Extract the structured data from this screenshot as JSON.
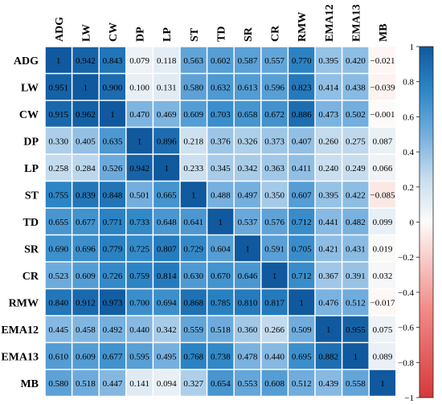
{
  "chart_data": {
    "type": "heatmap",
    "row_labels": [
      "ADG",
      "LW",
      "CW",
      "DP",
      "LP",
      "ST",
      "TD",
      "SR",
      "CR",
      "RMW",
      "EMA12",
      "EMA13",
      "MB"
    ],
    "col_labels": [
      "ADG",
      "LW",
      "CW",
      "DP",
      "LP",
      "ST",
      "TD",
      "SR",
      "CR",
      "RMW",
      "EMA12",
      "EMA13",
      "MB"
    ],
    "cell_labels": [
      [
        "1",
        "0.942",
        "0.843",
        "0.079",
        "0.118",
        "0.563",
        "0.602",
        "0.587",
        "0.557",
        "0.770",
        "0.395",
        "0.420",
        "−0.021"
      ],
      [
        "0.951",
        "1",
        "0.900",
        "0.100",
        "0.131",
        "0.580",
        "0.632",
        "0.613",
        "0.596",
        "0.823",
        "0.414",
        "0.438",
        "−0.039"
      ],
      [
        "0.915",
        "0.962",
        "1",
        "0.470",
        "0.469",
        "0.609",
        "0.703",
        "0.658",
        "0.672",
        "0.886",
        "0.473",
        "0.502",
        "−0.001"
      ],
      [
        "0.330",
        "0.405",
        "0.635",
        "1",
        "0.896",
        "0.218",
        "0.376",
        "0.326",
        "0.373",
        "0.407",
        "0.260",
        "0.275",
        "0.087"
      ],
      [
        "0.258",
        "0.284",
        "0.526",
        "0.942",
        "1",
        "0.233",
        "0.345",
        "0.342",
        "0.363",
        "0.411",
        "0.240",
        "0.249",
        "0.066"
      ],
      [
        "0.755",
        "0.839",
        "0.848",
        "0.501",
        "0.665",
        "1",
        "0.488",
        "0.497",
        "0.350",
        "0.607",
        "0.395",
        "0.422",
        "−0.085"
      ],
      [
        "0.655",
        "0.677",
        "0.771",
        "0.733",
        "0.648",
        "0.641",
        "1",
        "0.537",
        "0.576",
        "0.712",
        "0.441",
        "0.482",
        "0.099"
      ],
      [
        "0.690",
        "0.696",
        "0.779",
        "0.725",
        "0.807",
        "0.729",
        "0.604",
        "1",
        "0.591",
        "0.705",
        "0.421",
        "0.431",
        "0.019"
      ],
      [
        "0.523",
        "0.609",
        "0.726",
        "0.759",
        "0.814",
        "0.630",
        "0.670",
        "0.646",
        "1",
        "0.712",
        "0.367",
        "0.391",
        "0.032"
      ],
      [
        "0.840",
        "0.912",
        "0.973",
        "0.700",
        "0.694",
        "0.868",
        "0.785",
        "0.810",
        "0.817",
        "1",
        "0.476",
        "0.512",
        "−0.017"
      ],
      [
        "0.445",
        "0.458",
        "0.492",
        "0.440",
        "0.342",
        "0.559",
        "0.518",
        "0.360",
        "0.266",
        "0.509",
        "1",
        "0.955",
        "0.075"
      ],
      [
        "0.610",
        "0.609",
        "0.677",
        "0.595",
        "0.495",
        "0.768",
        "0.738",
        "0.478",
        "0.440",
        "0.695",
        "0.882",
        "1",
        "0.089"
      ],
      [
        "0.580",
        "0.518",
        "0.447",
        "0.141",
        "0.094",
        "0.327",
        "0.654",
        "0.553",
        "0.608",
        "0.512",
        "0.439",
        "0.558",
        "1"
      ]
    ],
    "color_scale": {
      "min": -1,
      "max": 1,
      "ticks": [
        1,
        0.8,
        0.6,
        0.4,
        0.2,
        0,
        -0.2,
        -0.4,
        -0.6,
        -0.8,
        -1
      ],
      "tick_labels": [
        "1",
        "0.8",
        "0.6",
        "0.4",
        "0.2",
        "0",
        "−0.2",
        "−0.4",
        "−0.6",
        "−0.8",
        "−1"
      ],
      "stops": [
        {
          "value": -1,
          "color": "#d6383a"
        },
        {
          "value": -0.5,
          "color": "#f28a86"
        },
        {
          "value": 0,
          "color": "#fdfbf9"
        },
        {
          "value": 0.25,
          "color": "#c7ddee"
        },
        {
          "value": 0.5,
          "color": "#73aede"
        },
        {
          "value": 0.75,
          "color": "#2d86c6"
        },
        {
          "value": 1,
          "color": "#10599e"
        }
      ]
    },
    "legend_placement": "right",
    "grid": true
  }
}
